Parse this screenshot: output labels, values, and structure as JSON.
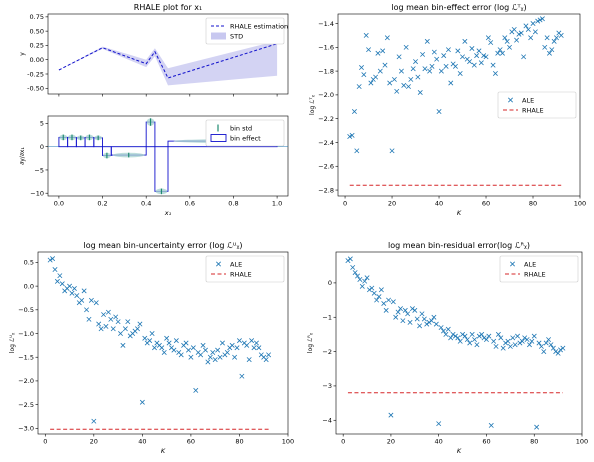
{
  "chart_data": [
    {
      "id": "rhale_top",
      "type": "line",
      "title": "RHALE plot for x₁",
      "xlabel": "",
      "ylabel": "y",
      "xlim": [
        -0.05,
        1.05
      ],
      "ylim": [
        -0.6,
        0.8
      ],
      "xticks": [
        0.0,
        0.2,
        0.4,
        0.6,
        0.8,
        1.0
      ],
      "xtick_labels_shown": false,
      "yticks": [
        -0.5,
        -0.25,
        0.0,
        0.25,
        0.5,
        0.75
      ],
      "ytick_labels": [
        "-0.50",
        "-0.25",
        "0.00",
        "0.25",
        "0.50",
        "0.75"
      ],
      "legend_position": "top-right",
      "series": [
        {
          "name": "RHALE estimation",
          "style": "dashed",
          "color": "#1010cc",
          "x": [
            0.0,
            0.2,
            0.4,
            0.44,
            0.5,
            1.0
          ],
          "y": [
            -0.18,
            0.21,
            -0.07,
            0.14,
            -0.32,
            0.28
          ]
        },
        {
          "name": "STD",
          "kind": "band",
          "color": "#c8c8f0",
          "x": [
            0.0,
            0.2,
            0.4,
            0.44,
            0.5,
            1.0
          ],
          "y_low": [
            -0.18,
            0.19,
            -0.13,
            0.06,
            -0.45,
            -0.28
          ],
          "y_high": [
            -0.18,
            0.23,
            0.0,
            0.2,
            -0.15,
            0.33
          ]
        }
      ]
    },
    {
      "id": "rhale_bottom",
      "type": "bar",
      "title": "",
      "xlabel": "x₁",
      "ylabel": "∂y/∂x₁",
      "xlim": [
        -0.05,
        1.05
      ],
      "ylim": [
        -10.6,
        6.6
      ],
      "xticks": [
        0.0,
        0.2,
        0.4,
        0.6,
        0.8,
        1.0
      ],
      "xtick_labels": [
        "0.0",
        "0.2",
        "0.4",
        "0.6",
        "0.8",
        "1.0"
      ],
      "yticks": [
        -10,
        -5,
        0,
        5
      ],
      "ytick_labels": [
        "−10",
        "−5",
        "0",
        "5"
      ],
      "legend_position": "top-right",
      "legend": [
        "bin std",
        "bin effect"
      ],
      "bins": [
        {
          "x0": 0.0,
          "x1": 0.04,
          "effect": 2.0,
          "std": 0.6
        },
        {
          "x0": 0.04,
          "x1": 0.08,
          "effect": 2.0,
          "std": 0.6
        },
        {
          "x0": 0.08,
          "x1": 0.12,
          "effect": 1.9,
          "std": 0.5
        },
        {
          "x0": 0.12,
          "x1": 0.16,
          "effect": 2.0,
          "std": 0.6
        },
        {
          "x0": 0.16,
          "x1": 0.2,
          "effect": 1.9,
          "std": 0.5
        },
        {
          "x0": 0.2,
          "x1": 0.24,
          "effect": -1.9,
          "std": 0.6
        },
        {
          "x0": 0.24,
          "x1": 0.4,
          "effect": -1.8,
          "std": 0.5
        },
        {
          "x0": 0.4,
          "x1": 0.44,
          "effect": 5.3,
          "std": 0.8
        },
        {
          "x0": 0.44,
          "x1": 0.5,
          "effect": -9.6,
          "std": 0.6
        },
        {
          "x0": 0.5,
          "x1": 1.0,
          "effect": 1.2,
          "std": 0.4
        }
      ]
    },
    {
      "id": "bin_effect_error",
      "type": "scatter",
      "title": "log mean bin-effect error (log ℒᵀᵪ)",
      "xlabel": "K",
      "ylabel": "log ℒᵀᵪ",
      "xlim": [
        -3,
        100
      ],
      "ylim": [
        -2.85,
        -1.32
      ],
      "xticks": [
        0,
        20,
        40,
        60,
        80,
        100
      ],
      "yticks": [
        -2.8,
        -2.6,
        -2.4,
        -2.2,
        -2.0,
        -1.8,
        -1.6,
        -1.4
      ],
      "ytick_labels": [
        "−2.8",
        "−2.6",
        "−2.4",
        "−2.2",
        "−2.0",
        "−1.8",
        "−1.6",
        "−1.4"
      ],
      "legend_position": "center-right",
      "series": [
        {
          "name": "ALE",
          "marker": "x",
          "x": [
            2,
            3,
            4,
            5,
            6,
            7,
            8,
            9,
            10,
            11,
            12,
            13,
            14,
            15,
            16,
            17,
            18,
            19,
            20,
            21,
            22,
            23,
            24,
            25,
            26,
            27,
            28,
            29,
            30,
            31,
            32,
            33,
            34,
            35,
            36,
            37,
            38,
            39,
            40,
            41,
            42,
            43,
            44,
            45,
            46,
            47,
            48,
            49,
            50,
            51,
            52,
            53,
            54,
            55,
            56,
            57,
            58,
            59,
            60,
            61,
            62,
            63,
            64,
            65,
            66,
            67,
            68,
            69,
            70,
            71,
            72,
            73,
            74,
            75,
            76,
            77,
            78,
            79,
            80,
            81,
            82,
            83,
            84,
            85,
            86,
            87,
            88,
            89,
            90,
            91,
            92
          ],
          "y": [
            -2.35,
            -2.34,
            -2.14,
            -2.47,
            -1.93,
            -1.77,
            -1.83,
            -1.5,
            -1.62,
            -1.9,
            -1.87,
            -1.85,
            -1.65,
            -1.8,
            -1.63,
            -1.75,
            -1.52,
            -1.9,
            -2.47,
            -1.87,
            -1.97,
            -1.68,
            -1.8,
            -1.92,
            -1.6,
            -1.93,
            -1.87,
            -1.78,
            -1.72,
            -1.85,
            -1.98,
            -1.66,
            -1.78,
            -1.55,
            -1.8,
            -1.76,
            -1.64,
            -1.7,
            -2.14,
            -1.8,
            -1.67,
            -1.76,
            -1.62,
            -1.9,
            -1.74,
            -1.76,
            -1.63,
            -1.82,
            -1.68,
            -1.55,
            -1.7,
            -1.72,
            -1.61,
            -1.75,
            -1.67,
            -1.63,
            -1.73,
            -1.67,
            -1.68,
            -1.52,
            -1.56,
            -1.75,
            -1.82,
            -1.65,
            -1.62,
            -1.65,
            -1.52,
            -1.55,
            -1.6,
            -1.47,
            -1.45,
            -1.54,
            -1.49,
            -1.48,
            -1.68,
            -1.42,
            -1.45,
            -1.52,
            -1.4,
            -1.47,
            -1.38,
            -1.37,
            -1.36,
            -1.6,
            -1.52,
            -1.65,
            -1.62,
            -1.55,
            -1.52,
            -1.48,
            -1.5
          ]
        },
        {
          "name": "RHALE",
          "style": "dashed",
          "color": "#d62728",
          "x": [
            2,
            92
          ],
          "y": [
            -2.76,
            -2.76
          ]
        }
      ]
    },
    {
      "id": "bin_uncertainty_error",
      "type": "scatter",
      "title": "log mean bin-uncertainty error (log ℒᵁᵪ)",
      "xlabel": "K",
      "ylabel": "log ℒᵁᵪ",
      "xlim": [
        -3,
        100
      ],
      "ylim": [
        -3.12,
        0.72
      ],
      "xticks": [
        0,
        20,
        40,
        60,
        80,
        100
      ],
      "yticks": [
        -3.0,
        -2.5,
        -2.0,
        -1.5,
        -1.0,
        -0.5,
        0.0,
        0.5
      ],
      "ytick_labels": [
        "−3.0",
        "−2.5",
        "−2.0",
        "−1.5",
        "−1.0",
        "−0.5",
        "0.0",
        "0.5"
      ],
      "legend_position": "top-right",
      "series": [
        {
          "name": "ALE",
          "marker": "x",
          "x": [
            2,
            3,
            4,
            5,
            6,
            7,
            8,
            9,
            10,
            11,
            12,
            13,
            14,
            15,
            16,
            17,
            18,
            19,
            20,
            21,
            22,
            23,
            24,
            25,
            26,
            27,
            28,
            29,
            30,
            31,
            32,
            33,
            34,
            35,
            36,
            37,
            38,
            39,
            40,
            41,
            42,
            43,
            44,
            45,
            46,
            47,
            48,
            49,
            50,
            51,
            52,
            53,
            54,
            55,
            56,
            57,
            58,
            59,
            60,
            61,
            62,
            63,
            64,
            65,
            66,
            67,
            68,
            69,
            70,
            71,
            72,
            73,
            74,
            75,
            76,
            77,
            78,
            79,
            80,
            81,
            82,
            83,
            84,
            85,
            86,
            87,
            88,
            89,
            90,
            91,
            92
          ],
          "y": [
            0.55,
            0.58,
            0.35,
            0.1,
            0.22,
            0.05,
            -0.1,
            -0.05,
            0.0,
            -0.15,
            -0.05,
            -0.2,
            -0.35,
            -0.3,
            -0.1,
            -0.5,
            -0.7,
            -0.3,
            -2.85,
            -0.35,
            -0.8,
            -0.9,
            -0.6,
            -0.85,
            -0.55,
            -0.7,
            -0.9,
            -0.65,
            -0.75,
            -1.0,
            -1.25,
            -0.9,
            -0.75,
            -1.05,
            -1.0,
            -0.95,
            -0.9,
            -0.8,
            -2.45,
            -1.1,
            -1.2,
            -1.15,
            -1.0,
            -1.3,
            -1.2,
            -1.25,
            -1.3,
            -1.4,
            -1.1,
            -1.2,
            -1.3,
            -1.35,
            -1.15,
            -1.4,
            -1.45,
            -1.25,
            -1.2,
            -1.35,
            -1.5,
            -1.3,
            -2.2,
            -1.4,
            -1.45,
            -1.25,
            -1.35,
            -1.6,
            -1.5,
            -1.4,
            -1.55,
            -1.35,
            -1.5,
            -1.2,
            -1.45,
            -1.4,
            -1.3,
            -1.25,
            -1.5,
            -1.3,
            -1.15,
            -1.9,
            -1.2,
            -1.25,
            -1.55,
            -1.15,
            -1.3,
            -1.2,
            -1.3,
            -1.45,
            -1.5,
            -1.55,
            -1.45
          ]
        },
        {
          "name": "RHALE",
          "style": "dashed",
          "color": "#d62728",
          "x": [
            2,
            92
          ],
          "y": [
            -3.02,
            -3.02
          ]
        }
      ]
    },
    {
      "id": "bin_residual_error",
      "type": "scatter",
      "title": "log mean bin-residual error(log ℒᴿᵪ)",
      "xlabel": "K",
      "ylabel": "log ℒᴿᵪ",
      "xlim": [
        -3,
        100
      ],
      "ylim": [
        -4.4,
        0.9
      ],
      "xticks": [
        0,
        20,
        40,
        60,
        80,
        100
      ],
      "yticks": [
        -4,
        -3,
        -2,
        -1,
        0
      ],
      "ytick_labels": [
        "−4",
        "−3",
        "−2",
        "−1",
        "0"
      ],
      "legend_position": "top-right",
      "series": [
        {
          "name": "ALE",
          "marker": "x",
          "x": [
            2,
            3,
            4,
            5,
            6,
            7,
            8,
            9,
            10,
            11,
            12,
            13,
            14,
            15,
            16,
            17,
            18,
            19,
            20,
            21,
            22,
            23,
            24,
            25,
            26,
            27,
            28,
            29,
            30,
            31,
            32,
            33,
            34,
            35,
            36,
            37,
            38,
            39,
            40,
            41,
            42,
            43,
            44,
            45,
            46,
            47,
            48,
            49,
            50,
            51,
            52,
            53,
            54,
            55,
            56,
            57,
            58,
            59,
            60,
            61,
            62,
            63,
            64,
            65,
            66,
            67,
            68,
            69,
            70,
            71,
            72,
            73,
            74,
            75,
            76,
            77,
            78,
            79,
            80,
            81,
            82,
            83,
            84,
            85,
            86,
            87,
            88,
            89,
            90,
            91,
            92
          ],
          "y": [
            0.65,
            0.7,
            0.45,
            0.3,
            0.2,
            0.1,
            -0.1,
            0.05,
            0.15,
            -0.2,
            -0.15,
            -0.3,
            -0.5,
            -0.4,
            -0.2,
            -0.6,
            -0.8,
            -0.5,
            -3.85,
            -0.55,
            -1.0,
            -0.85,
            -0.75,
            -1.1,
            -0.8,
            -0.9,
            -1.15,
            -0.75,
            -0.8,
            -1.05,
            -1.25,
            -0.9,
            -1.05,
            -1.2,
            -1.15,
            -1.1,
            -1.0,
            -1.2,
            -4.1,
            -1.3,
            -1.4,
            -1.5,
            -1.35,
            -1.6,
            -1.5,
            -1.55,
            -1.6,
            -1.7,
            -1.5,
            -1.55,
            -1.65,
            -1.75,
            -1.5,
            -1.65,
            -1.8,
            -1.55,
            -1.5,
            -1.6,
            -1.65,
            -1.55,
            -4.15,
            -1.7,
            -1.85,
            -1.5,
            -1.6,
            -1.9,
            -1.75,
            -1.7,
            -1.85,
            -1.6,
            -1.8,
            -1.55,
            -1.75,
            -1.7,
            -1.6,
            -1.65,
            -1.8,
            -1.7,
            -1.55,
            -4.2,
            -1.75,
            -1.85,
            -2.0,
            -1.75,
            -1.65,
            -1.8,
            -1.9,
            -2.0,
            -2.05,
            -1.95,
            -1.9
          ]
        },
        {
          "name": "RHALE",
          "style": "dashed",
          "color": "#d62728",
          "x": [
            2,
            92
          ],
          "y": [
            -3.2,
            -3.2
          ]
        }
      ]
    }
  ]
}
